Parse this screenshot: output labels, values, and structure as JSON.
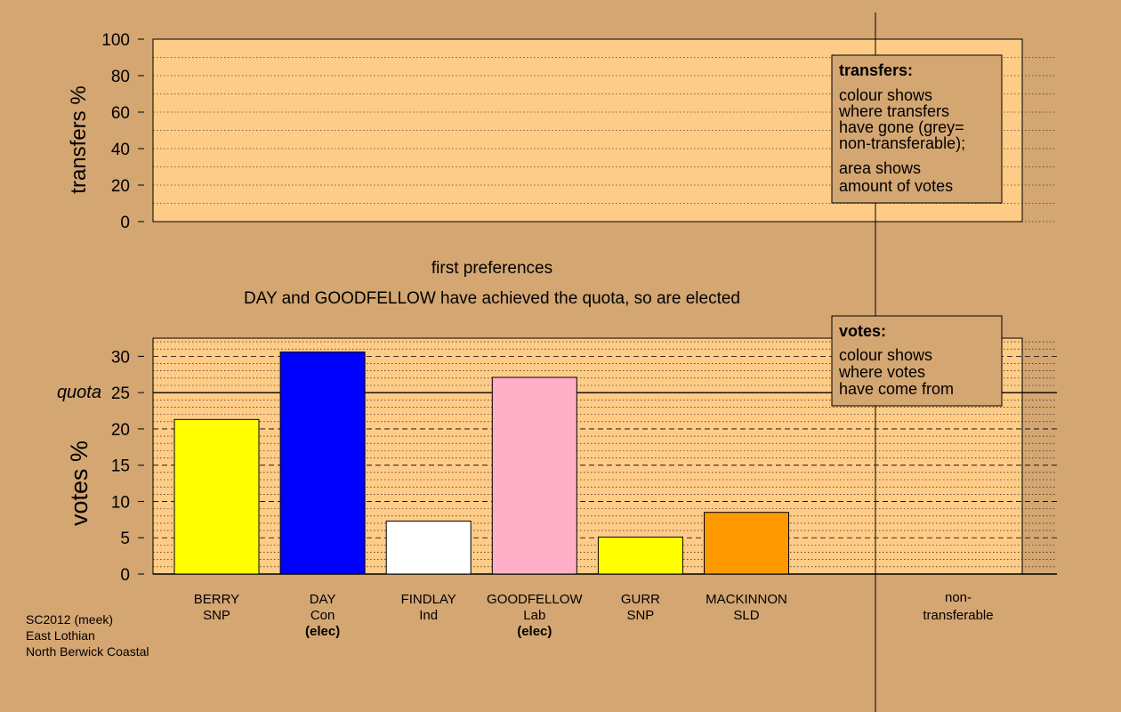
{
  "stage_title": "first preferences",
  "stage_note": "DAY and GOODFELLOW have achieved the quota, so are elected",
  "footer": [
    "SC2012 (meek)",
    "East Lothian",
    "North Berwick Coastal"
  ],
  "transfers_legend": {
    "title": "transfers:",
    "lines1": [
      "colour shows",
      "where transfers",
      "have gone (grey=",
      "non-transferable);"
    ],
    "lines2": [
      "area shows",
      "amount of votes"
    ]
  },
  "votes_legend": {
    "title": "votes:",
    "lines": [
      "colour shows",
      "where votes",
      "have come from"
    ]
  },
  "chart_data": [
    {
      "type": "bar",
      "ylabel": "transfers %",
      "ylim": [
        0,
        100
      ],
      "yticks": [
        0,
        20,
        40,
        60,
        80,
        100
      ],
      "grid": "dotted",
      "values": []
    },
    {
      "type": "bar",
      "ylabel": "votes %",
      "ylim": [
        0,
        32.5
      ],
      "yticks": [
        0,
        5,
        10,
        15,
        20,
        25,
        30
      ],
      "quota": 25,
      "quota_label": "quota",
      "grid": "dashed",
      "categories": [
        {
          "name": "BERRY",
          "party": "SNP",
          "elec": ""
        },
        {
          "name": "DAY",
          "party": "Con",
          "elec": "(elec)"
        },
        {
          "name": "FINDLAY",
          "party": "Ind",
          "elec": ""
        },
        {
          "name": "GOODFELLOW",
          "party": "Lab",
          "elec": "(elec)"
        },
        {
          "name": "GURR",
          "party": "SNP",
          "elec": ""
        },
        {
          "name": "MACKINNON",
          "party": "SLD",
          "elec": ""
        }
      ],
      "values": [
        21.3,
        30.6,
        7.3,
        27.1,
        5.1,
        8.5
      ],
      "colors": [
        "#ffff00",
        "#0000ff",
        "#ffffff",
        "#ffb0c8",
        "#ffff00",
        "#ff9900"
      ],
      "nontransferable_label": [
        "non-",
        "transferable"
      ]
    }
  ]
}
